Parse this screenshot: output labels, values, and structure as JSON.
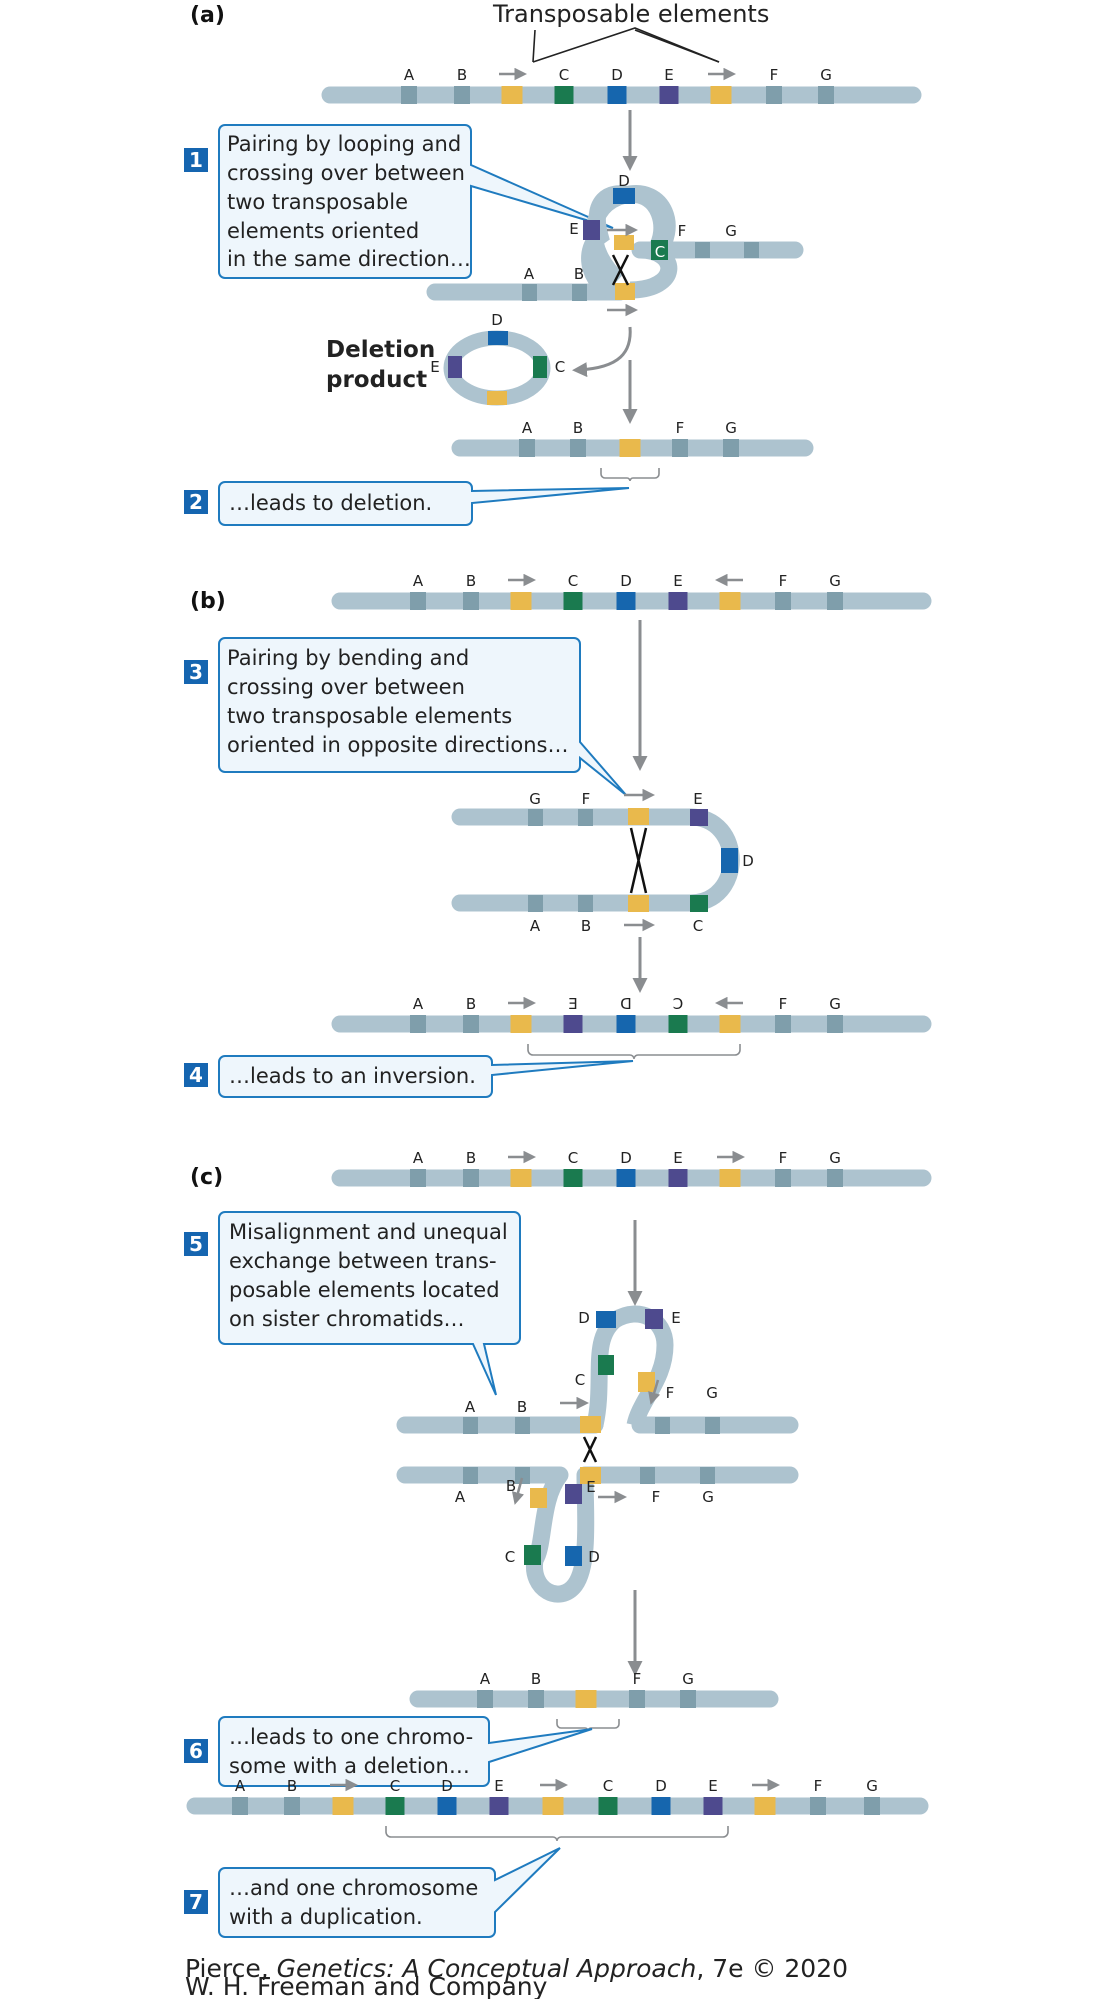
{
  "header": {
    "transposable_elements": "Transposable elements"
  },
  "panels": {
    "a": "(a)",
    "b": "(b)",
    "c": "(c)"
  },
  "gene_labels": [
    "A",
    "B",
    "C",
    "D",
    "E",
    "F",
    "G"
  ],
  "inverted_labels": {
    "E": "E",
    "D": "D",
    "C": "C"
  },
  "deletion_product": [
    "Deletion",
    "product"
  ],
  "steps": [
    {
      "n": "1",
      "lines": [
        "Pairing by looping and",
        "crossing over between",
        "two transposable",
        "elements oriented",
        "in the same direction…"
      ]
    },
    {
      "n": "2",
      "lines": [
        "…leads to deletion."
      ]
    },
    {
      "n": "3",
      "lines": [
        "Pairing by bending and",
        "crossing over between",
        "two transposable elements",
        "oriented in opposite directions…"
      ]
    },
    {
      "n": "4",
      "lines": [
        "…leads to an inversion."
      ]
    },
    {
      "n": "5",
      "lines": [
        "Misalignment and unequal",
        "exchange between trans-",
        "posable elements located",
        "on sister chromatids…"
      ]
    },
    {
      "n": "6",
      "lines": [
        "…leads to one chromo-",
        "some with a deletion…"
      ]
    },
    {
      "n": "7",
      "lines": [
        "…and one chromosome",
        "with a duplication."
      ]
    }
  ],
  "credit": {
    "author": "Pierce, ",
    "book": "Genetics: A Conceptual Approach",
    "edition": ", 7e © 2020",
    "publisher": "W. H. Freeman and Company"
  },
  "colors": {
    "chromosome": "#adc3cf",
    "gene_band": "#7f9eab",
    "transposon": "#e9b94c",
    "C": "#1a7a4f",
    "D": "#1666ae",
    "E": "#4e4a8e",
    "callout_border": "#1f7bbf",
    "callout_fill": "#eef6fc",
    "step_number_bg": "#1565b0",
    "arrow": "#8a8d90",
    "bracket": "#8a8d90"
  }
}
